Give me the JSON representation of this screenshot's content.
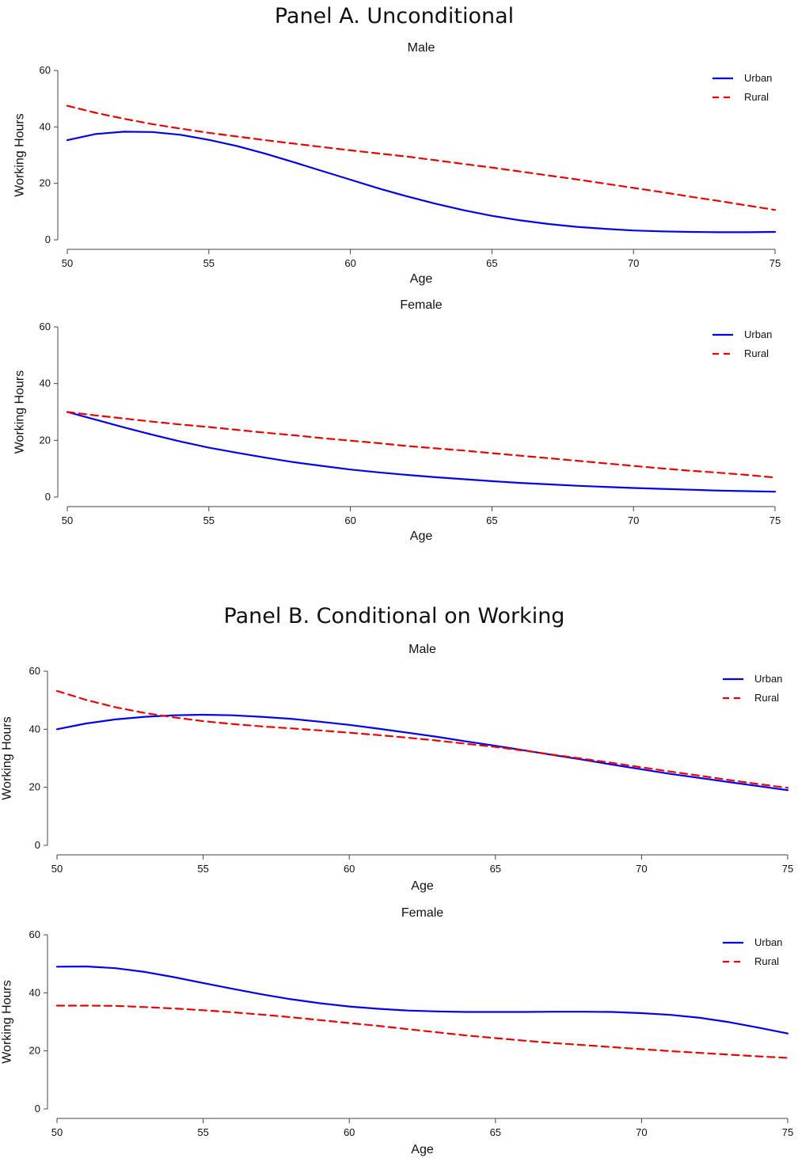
{
  "panels": [
    {
      "title": "Panel A. Unconditional"
    },
    {
      "title": "Panel B. Conditional on Working"
    }
  ],
  "chart_data": [
    {
      "type": "line",
      "panel": "Panel A. Unconditional",
      "title": "Male",
      "xlabel": "Age",
      "ylabel": "Working Hours",
      "xlim": [
        50,
        75
      ],
      "ylim": [
        0,
        60
      ],
      "xticks": [
        50,
        55,
        60,
        65,
        70,
        75
      ],
      "yticks": [
        0,
        20,
        40,
        60
      ],
      "legend": "top-right",
      "x": [
        50,
        51,
        52,
        53,
        54,
        55,
        56,
        57,
        58,
        59,
        60,
        61,
        62,
        63,
        64,
        65,
        66,
        67,
        68,
        69,
        70,
        71,
        72,
        73,
        74,
        75
      ],
      "series": [
        {
          "name": "Urban",
          "color": "#0000ee",
          "dash": "solid",
          "values": [
            35.3,
            37.5,
            38.3,
            38.2,
            37.2,
            35.4,
            33.2,
            30.5,
            27.5,
            24.4,
            21.3,
            18.2,
            15.4,
            12.8,
            10.5,
            8.5,
            6.9,
            5.6,
            4.6,
            3.9,
            3.3,
            3.0,
            2.8,
            2.7,
            2.7,
            2.8
          ]
        },
        {
          "name": "Rural",
          "color": "#ee0000",
          "dash": "dashed",
          "values": [
            47.5,
            45.0,
            42.9,
            41.0,
            39.4,
            37.9,
            36.6,
            35.3,
            34.1,
            32.9,
            31.7,
            30.6,
            29.5,
            28.2,
            26.9,
            25.6,
            24.2,
            22.8,
            21.4,
            19.9,
            18.4,
            16.9,
            15.3,
            13.8,
            12.2,
            10.6
          ]
        }
      ]
    },
    {
      "type": "line",
      "panel": "Panel A. Unconditional",
      "title": "Female",
      "xlabel": "Age",
      "ylabel": "Working Hours",
      "xlim": [
        50,
        75
      ],
      "ylim": [
        0,
        60
      ],
      "xticks": [
        50,
        55,
        60,
        65,
        70,
        75
      ],
      "yticks": [
        0,
        20,
        40,
        60
      ],
      "legend": "top-right",
      "x": [
        50,
        51,
        52,
        53,
        54,
        55,
        56,
        57,
        58,
        59,
        60,
        61,
        62,
        63,
        64,
        65,
        66,
        67,
        68,
        69,
        70,
        71,
        72,
        73,
        74,
        75
      ],
      "series": [
        {
          "name": "Urban",
          "color": "#0000ee",
          "dash": "solid",
          "values": [
            30.0,
            27.3,
            24.6,
            22.0,
            19.6,
            17.4,
            15.6,
            13.9,
            12.3,
            11.0,
            9.7,
            8.7,
            7.8,
            7.0,
            6.3,
            5.6,
            5.0,
            4.5,
            4.0,
            3.6,
            3.2,
            2.9,
            2.6,
            2.3,
            2.1,
            1.9
          ]
        },
        {
          "name": "Rural",
          "color": "#ee0000",
          "dash": "dashed",
          "values": [
            30.0,
            28.8,
            27.7,
            26.6,
            25.6,
            24.7,
            23.7,
            22.7,
            21.8,
            20.8,
            19.9,
            19.0,
            18.0,
            17.2,
            16.4,
            15.5,
            14.6,
            13.7,
            12.8,
            11.9,
            11.0,
            10.1,
            9.3,
            8.6,
            7.8,
            6.9
          ]
        }
      ]
    },
    {
      "type": "line",
      "panel": "Panel B. Conditional on Working",
      "title": "Male",
      "xlabel": "Age",
      "ylabel": "Working Hours",
      "xlim": [
        50,
        75
      ],
      "ylim": [
        0,
        60
      ],
      "xticks": [
        50,
        55,
        60,
        65,
        70,
        75
      ],
      "yticks": [
        0,
        20,
        40,
        60
      ],
      "legend": "top-right",
      "x": [
        50,
        51,
        52,
        53,
        54,
        55,
        56,
        57,
        58,
        59,
        60,
        61,
        62,
        63,
        64,
        65,
        66,
        67,
        68,
        69,
        70,
        71,
        72,
        73,
        74,
        75
      ],
      "series": [
        {
          "name": "Urban",
          "color": "#0000ee",
          "dash": "solid",
          "values": [
            40.0,
            42.0,
            43.4,
            44.3,
            44.8,
            45.0,
            44.8,
            44.3,
            43.6,
            42.6,
            41.5,
            40.2,
            38.8,
            37.4,
            35.8,
            34.3,
            32.7,
            31.1,
            29.5,
            27.8,
            26.2,
            24.6,
            23.2,
            21.8,
            20.4,
            19.0
          ]
        },
        {
          "name": "Rural",
          "color": "#ee0000",
          "dash": "dashed",
          "values": [
            53.2,
            50.1,
            47.6,
            45.6,
            44.1,
            42.8,
            41.8,
            41.0,
            40.3,
            39.6,
            38.8,
            38.0,
            37.1,
            36.1,
            35.0,
            33.9,
            32.6,
            31.2,
            29.8,
            28.4,
            26.9,
            25.4,
            24.0,
            22.5,
            21.1,
            19.8
          ]
        }
      ]
    },
    {
      "type": "line",
      "panel": "Panel B. Conditional on Working",
      "title": "Female",
      "xlabel": "Age",
      "ylabel": "Working Hours",
      "xlim": [
        50,
        75
      ],
      "ylim": [
        0,
        60
      ],
      "xticks": [
        50,
        55,
        60,
        65,
        70,
        75
      ],
      "yticks": [
        0,
        20,
        40,
        60
      ],
      "legend": "top-right",
      "x": [
        50,
        51,
        52,
        53,
        54,
        55,
        56,
        57,
        58,
        59,
        60,
        61,
        62,
        63,
        64,
        65,
        66,
        67,
        68,
        69,
        70,
        71,
        72,
        73,
        74,
        75
      ],
      "series": [
        {
          "name": "Urban",
          "color": "#0000ee",
          "dash": "solid",
          "values": [
            49.0,
            49.1,
            48.5,
            47.2,
            45.4,
            43.4,
            41.4,
            39.5,
            37.8,
            36.4,
            35.3,
            34.5,
            33.9,
            33.6,
            33.4,
            33.4,
            33.4,
            33.5,
            33.5,
            33.4,
            33.0,
            32.4,
            31.4,
            29.9,
            28.0,
            26.0
          ]
        },
        {
          "name": "Rural",
          "color": "#ee0000",
          "dash": "dashed",
          "values": [
            35.6,
            35.6,
            35.5,
            35.1,
            34.6,
            34.0,
            33.3,
            32.5,
            31.6,
            30.6,
            29.6,
            28.6,
            27.5,
            26.4,
            25.3,
            24.4,
            23.5,
            22.7,
            22.0,
            21.3,
            20.6,
            19.9,
            19.3,
            18.7,
            18.1,
            17.6
          ]
        }
      ]
    }
  ]
}
